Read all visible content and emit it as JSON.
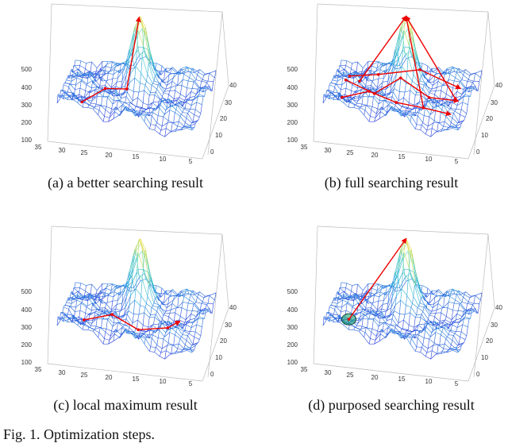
{
  "panels": [
    {
      "caption": "(a) a better searching result",
      "z_ticks": [
        500,
        400,
        300,
        200,
        100
      ],
      "x_ticks": [
        35,
        30,
        25,
        20,
        15,
        10,
        5
      ],
      "y_ticks": [
        40,
        30,
        20,
        10,
        0
      ]
    },
    {
      "caption": "(b) full searching result",
      "z_ticks": [
        500,
        400,
        300,
        200,
        100
      ],
      "x_ticks": [
        35,
        30,
        25,
        20,
        15,
        10,
        5
      ],
      "y_ticks": [
        40,
        30,
        20,
        10,
        0
      ]
    },
    {
      "caption": "(c) local maximum result",
      "z_ticks": [
        500,
        400,
        300,
        200,
        100
      ],
      "x_ticks": [
        35,
        30,
        25,
        20,
        15,
        10,
        5
      ],
      "y_ticks": [
        40,
        30,
        20,
        10,
        0
      ]
    },
    {
      "caption": "(d) purposed searching result",
      "z_ticks": [
        500,
        400,
        300,
        200,
        100
      ],
      "x_ticks": [
        35,
        30,
        25,
        20,
        15,
        10,
        5
      ],
      "y_ticks": [
        40,
        30,
        20,
        10,
        0
      ]
    }
  ],
  "figure_caption": "Fig. 1.   Optimization steps."
}
